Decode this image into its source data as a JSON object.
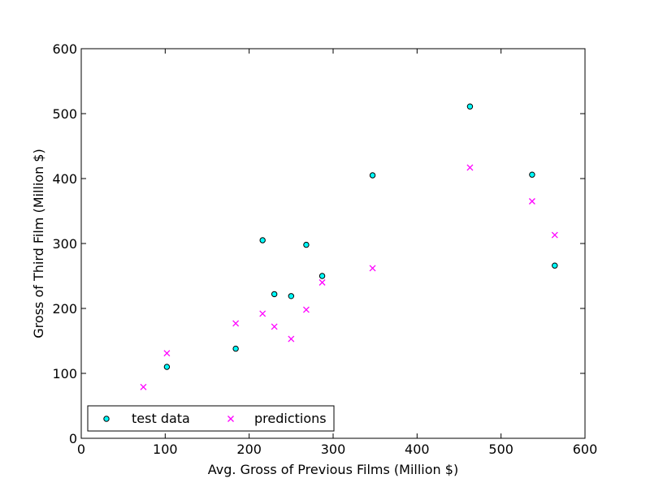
{
  "chart_data": {
    "type": "scatter",
    "title": "",
    "xlabel": "Avg. Gross of Previous Films (Million $)",
    "ylabel": "Gross of Third Film (Million $)",
    "xlim": [
      0,
      600
    ],
    "ylim": [
      0,
      600
    ],
    "xticks": [
      0,
      100,
      200,
      300,
      400,
      500,
      600
    ],
    "yticks": [
      0,
      100,
      200,
      300,
      400,
      500,
      600
    ],
    "grid": false,
    "legend_position": "lower-left",
    "series": [
      {
        "name": "test data",
        "marker": "circle",
        "color": "#00ffff",
        "edge_color": "#000000",
        "points": [
          {
            "x": 102,
            "y": 110
          },
          {
            "x": 184,
            "y": 138
          },
          {
            "x": 216,
            "y": 305
          },
          {
            "x": 230,
            "y": 222
          },
          {
            "x": 250,
            "y": 219
          },
          {
            "x": 268,
            "y": 298
          },
          {
            "x": 287,
            "y": 250
          },
          {
            "x": 347,
            "y": 405
          },
          {
            "x": 463,
            "y": 511
          },
          {
            "x": 537,
            "y": 406
          },
          {
            "x": 564,
            "y": 266
          }
        ]
      },
      {
        "name": "predictions",
        "marker": "x",
        "color": "#ff00ff",
        "points": [
          {
            "x": 74,
            "y": 79
          },
          {
            "x": 102,
            "y": 131
          },
          {
            "x": 184,
            "y": 177
          },
          {
            "x": 216,
            "y": 192
          },
          {
            "x": 230,
            "y": 172
          },
          {
            "x": 250,
            "y": 153
          },
          {
            "x": 268,
            "y": 198
          },
          {
            "x": 287,
            "y": 240
          },
          {
            "x": 347,
            "y": 262
          },
          {
            "x": 463,
            "y": 417
          },
          {
            "x": 537,
            "y": 365
          },
          {
            "x": 564,
            "y": 313
          }
        ]
      }
    ]
  }
}
